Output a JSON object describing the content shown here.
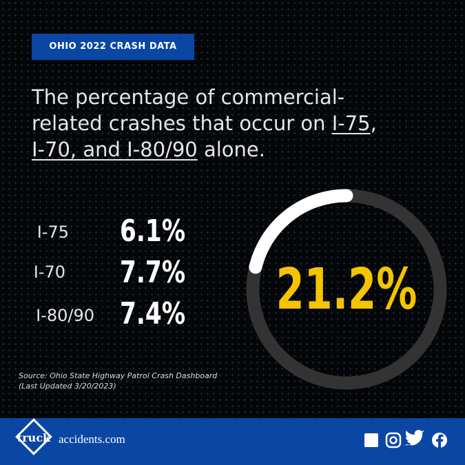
{
  "badge": "OHIO 2022 CRASH DATA",
  "headline": [
    "The percentage of commercial-",
    "related crashes that occur on ",
    "I-75",
    ",",
    "I-70, and I-80/90",
    " alone."
  ],
  "rows": [
    {
      "road": "I-75",
      "share": "6.1%"
    },
    {
      "road": "I-70",
      "share": "7.7%"
    },
    {
      "road": "I-80/90",
      "share": "7.4%"
    }
  ],
  "source": [
    "Source: Ohio State Highway Patrol Crash Dashboard",
    "(Last Updated 3/20/2023)"
  ],
  "logo": {
    "left": "truck",
    "right": "accidents.com"
  },
  "chart_data": {
    "type": "donut",
    "values": [
      21.2
    ],
    "value_labels": [
      "21.2%"
    ],
    "color": "#ffffff",
    "track_color": "#333333",
    "label_color": "#f5c400"
  }
}
